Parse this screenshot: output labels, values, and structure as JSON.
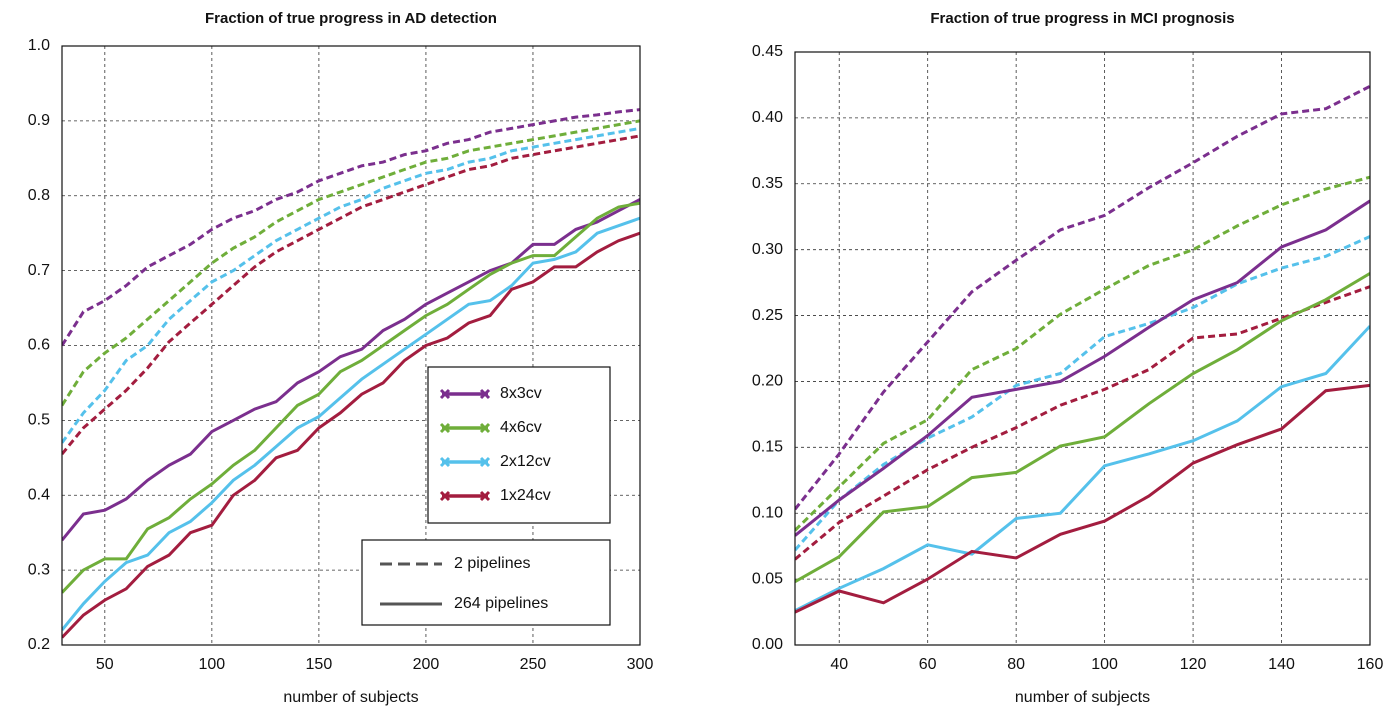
{
  "chart_data": [
    {
      "type": "line",
      "title": "Fraction of true progress in AD detection",
      "xlabel": "number of subjects",
      "x": [
        30,
        40,
        50,
        60,
        70,
        80,
        90,
        100,
        110,
        120,
        130,
        140,
        150,
        160,
        170,
        180,
        190,
        200,
        210,
        220,
        230,
        240,
        250,
        260,
        270,
        280,
        290,
        300
      ],
      "xlim": [
        30,
        300
      ],
      "xticks": [
        50,
        100,
        150,
        200,
        250,
        300
      ],
      "ylim": [
        0.2,
        1.0
      ],
      "yticks": [
        0.2,
        0.3,
        0.4,
        0.5,
        0.6,
        0.7,
        0.8,
        0.9,
        {
          "value": 1.0,
          "label": "1.0"
        }
      ],
      "grid": true,
      "line_styles": [
        {
          "name": "2 pipelines",
          "dash": "dashed"
        },
        {
          "name": "264 pipelines",
          "dash": "solid"
        }
      ],
      "series": [
        {
          "name": "8x3cv",
          "color": "#7b2f8e",
          "values": [
            [
              0.6,
              0.645,
              0.66,
              0.68,
              0.705,
              0.72,
              0.735,
              0.755,
              0.77,
              0.78,
              0.795,
              0.805,
              0.82,
              0.83,
              0.84,
              0.845,
              0.855,
              0.86,
              0.87,
              0.875,
              0.885,
              0.89,
              0.895,
              0.9,
              0.905,
              0.908,
              0.912,
              0.915
            ],
            [
              0.34,
              0.375,
              0.38,
              0.395,
              0.42,
              0.44,
              0.455,
              0.485,
              0.5,
              0.515,
              0.525,
              0.55,
              0.565,
              0.585,
              0.595,
              0.62,
              0.635,
              0.655,
              0.67,
              0.685,
              0.7,
              0.71,
              0.735,
              0.735,
              0.755,
              0.765,
              0.78,
              0.795
            ]
          ]
        },
        {
          "name": "4x6cv",
          "color": "#6fae3a",
          "values": [
            [
              0.52,
              0.565,
              0.59,
              0.61,
              0.635,
              0.66,
              0.685,
              0.71,
              0.73,
              0.745,
              0.765,
              0.78,
              0.795,
              0.805,
              0.815,
              0.825,
              0.835,
              0.845,
              0.85,
              0.86,
              0.865,
              0.87,
              0.875,
              0.88,
              0.885,
              0.89,
              0.895,
              0.9
            ],
            [
              0.27,
              0.3,
              0.315,
              0.315,
              0.355,
              0.37,
              0.395,
              0.415,
              0.44,
              0.46,
              0.49,
              0.52,
              0.535,
              0.565,
              0.58,
              0.6,
              0.62,
              0.64,
              0.655,
              0.675,
              0.695,
              0.71,
              0.72,
              0.72,
              0.745,
              0.77,
              0.785,
              0.79
            ]
          ]
        },
        {
          "name": "2x12cv",
          "color": "#55c1eb",
          "values": [
            [
              0.47,
              0.51,
              0.54,
              0.58,
              0.6,
              0.635,
              0.66,
              0.685,
              0.7,
              0.72,
              0.74,
              0.755,
              0.77,
              0.785,
              0.795,
              0.81,
              0.82,
              0.83,
              0.835,
              0.845,
              0.85,
              0.86,
              0.865,
              0.87,
              0.875,
              0.88,
              0.885,
              0.89
            ],
            [
              0.22,
              0.255,
              0.285,
              0.31,
              0.32,
              0.35,
              0.365,
              0.39,
              0.42,
              0.44,
              0.465,
              0.49,
              0.505,
              0.53,
              0.555,
              0.575,
              0.595,
              0.615,
              0.635,
              0.655,
              0.66,
              0.68,
              0.71,
              0.715,
              0.725,
              0.75,
              0.76,
              0.77
            ]
          ]
        },
        {
          "name": "1x24cv",
          "color": "#a31d3f",
          "values": [
            [
              0.455,
              0.49,
              0.515,
              0.54,
              0.57,
              0.605,
              0.63,
              0.655,
              0.68,
              0.705,
              0.725,
              0.74,
              0.755,
              0.77,
              0.785,
              0.795,
              0.805,
              0.815,
              0.825,
              0.835,
              0.84,
              0.85,
              0.855,
              0.86,
              0.865,
              0.87,
              0.875,
              0.88
            ],
            [
              0.21,
              0.24,
              0.26,
              0.275,
              0.305,
              0.32,
              0.35,
              0.36,
              0.4,
              0.42,
              0.45,
              0.46,
              0.49,
              0.51,
              0.535,
              0.55,
              0.58,
              0.6,
              0.61,
              0.63,
              0.64,
              0.675,
              0.685,
              0.705,
              0.705,
              0.725,
              0.74,
              0.75
            ]
          ]
        }
      ]
    },
    {
      "type": "line",
      "title": "Fraction of true progress in MCI prognosis",
      "xlabel": "number of subjects",
      "x": [
        30,
        40,
        50,
        60,
        70,
        80,
        90,
        100,
        110,
        120,
        130,
        140,
        150,
        160
      ],
      "xlim": [
        30,
        160
      ],
      "xticks": [
        40,
        60,
        80,
        100,
        120,
        140,
        160
      ],
      "ylim": [
        0,
        0.45
      ],
      "yticks": [
        {
          "value": 0,
          "label": "0.00"
        },
        0.05,
        {
          "value": 0.1,
          "label": "0.10"
        },
        0.15,
        {
          "value": 0.2,
          "label": "0.20"
        },
        0.25,
        {
          "value": 0.3,
          "label": "0.30"
        },
        0.35,
        {
          "value": 0.4,
          "label": "0.40"
        },
        0.45
      ],
      "grid": true,
      "line_styles": [
        {
          "dash": "dashed"
        },
        {
          "dash": "solid"
        }
      ],
      "series": [
        {
          "color": "#7b2f8e",
          "values": [
            [
              0.103,
              0.145,
              0.192,
              0.23,
              0.268,
              0.292,
              0.315,
              0.326,
              0.347,
              0.366,
              0.386,
              0.403,
              0.407,
              0.424
            ],
            [
              0.083,
              0.11,
              0.134,
              0.159,
              0.188,
              0.194,
              0.2,
              0.219,
              0.241,
              0.262,
              0.275,
              0.302,
              0.315,
              0.337
            ]
          ]
        },
        {
          "color": "#6fae3a",
          "values": [
            [
              0.087,
              0.12,
              0.153,
              0.171,
              0.209,
              0.225,
              0.251,
              0.27,
              0.288,
              0.3,
              0.318,
              0.334,
              0.346,
              0.355
            ],
            [
              0.048,
              0.067,
              0.101,
              0.105,
              0.127,
              0.131,
              0.151,
              0.158,
              0.183,
              0.206,
              0.224,
              0.246,
              0.262,
              0.282
            ]
          ]
        },
        {
          "color": "#55c1eb",
          "values": [
            [
              0.072,
              0.11,
              0.137,
              0.157,
              0.173,
              0.197,
              0.206,
              0.234,
              0.244,
              0.256,
              0.274,
              0.286,
              0.295,
              0.31
            ],
            [
              0.026,
              0.043,
              0.058,
              0.076,
              0.069,
              0.096,
              0.1,
              0.136,
              0.145,
              0.155,
              0.17,
              0.196,
              0.206,
              0.242
            ]
          ]
        },
        {
          "color": "#a31d3f",
          "values": [
            [
              0.065,
              0.093,
              0.113,
              0.133,
              0.15,
              0.165,
              0.182,
              0.194,
              0.209,
              0.233,
              0.236,
              0.248,
              0.26,
              0.272
            ],
            [
              0.025,
              0.041,
              0.032,
              0.05,
              0.071,
              0.066,
              0.084,
              0.094,
              0.113,
              0.138,
              0.152,
              0.164,
              0.193,
              0.197
            ]
          ]
        }
      ]
    }
  ]
}
